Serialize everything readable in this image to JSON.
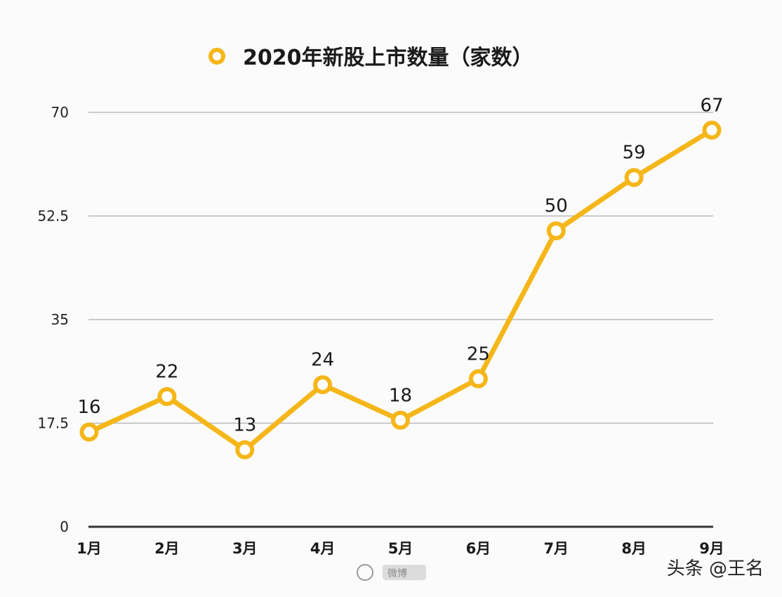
{
  "chart_data": {
    "type": "line",
    "title": "2020年新股上市数量（家数）",
    "categories": [
      "1月",
      "2月",
      "3月",
      "4月",
      "5月",
      "6月",
      "7月",
      "8月",
      "9月"
    ],
    "series": [
      {
        "name": "2020年新股上市数量（家数）",
        "values": [
          16,
          22,
          13,
          24,
          18,
          25,
          50,
          59,
          67
        ],
        "color": "#f5b619"
      }
    ],
    "yticks": [
      "0",
      "17.5",
      "35",
      "52.5",
      "70"
    ],
    "ylim": [
      0,
      70
    ],
    "grid": true,
    "legend": "top-center",
    "xlabel": "",
    "ylabel": ""
  },
  "watermark": {
    "right_text": "头条 @王名",
    "left_text": "微博"
  },
  "colors": {
    "line": "#f5b619",
    "grid": "#b9b9b9",
    "axis": "#333333",
    "background": "#fbfbfb"
  }
}
